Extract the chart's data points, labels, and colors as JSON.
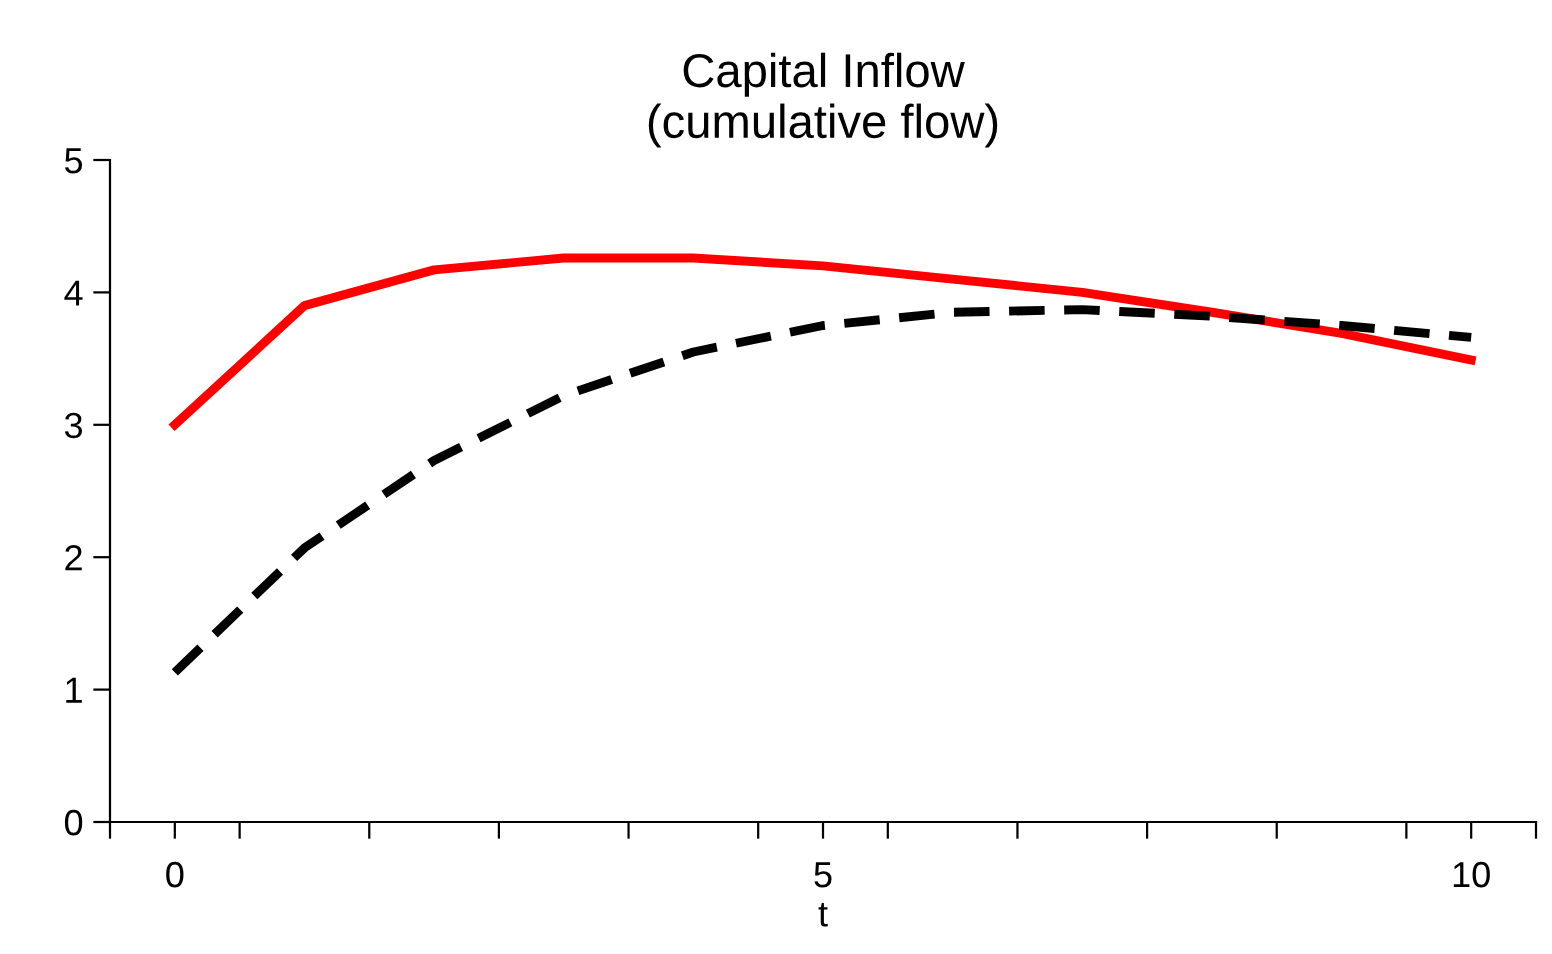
{
  "chart_data": {
    "type": "line",
    "title": "Capital Inflow\n(cumulative flow)",
    "xlabel": "t",
    "x": [
      0,
      1,
      2,
      3,
      4,
      5,
      6,
      7,
      8,
      9,
      10
    ],
    "series": [
      {
        "color": "#ff0000",
        "line_style": "solid",
        "values": [
          3.0,
          3.9,
          4.17,
          4.26,
          4.26,
          4.2,
          4.1,
          4.0,
          3.85,
          3.69,
          3.49
        ]
      },
      {
        "color": "#000000",
        "line_style": "dashed",
        "values": [
          1.13,
          2.07,
          2.73,
          3.22,
          3.55,
          3.75,
          3.85,
          3.87,
          3.82,
          3.75,
          3.66
        ]
      }
    ],
    "xlim": [
      -0.5,
      10.5
    ],
    "xticks": [
      {
        "value": -0.5,
        "label": null
      },
      0,
      {
        "value": 0.5,
        "label": null
      },
      {
        "value": 1.5,
        "label": null
      },
      {
        "value": 2.5,
        "label": null
      },
      {
        "value": 3.5,
        "label": null
      },
      {
        "value": 4.5,
        "label": null
      },
      5,
      {
        "value": 5.5,
        "label": null
      },
      {
        "value": 6.5,
        "label": null
      },
      {
        "value": 7.5,
        "label": null
      },
      {
        "value": 8.5,
        "label": null
      },
      {
        "value": 9.5,
        "label": null
      },
      10,
      {
        "value": 10.5,
        "label": null
      }
    ],
    "ylim": [
      0,
      5
    ],
    "yticks": [
      0,
      1,
      2,
      3,
      4,
      5
    ],
    "grid": false,
    "marker": "none"
  }
}
